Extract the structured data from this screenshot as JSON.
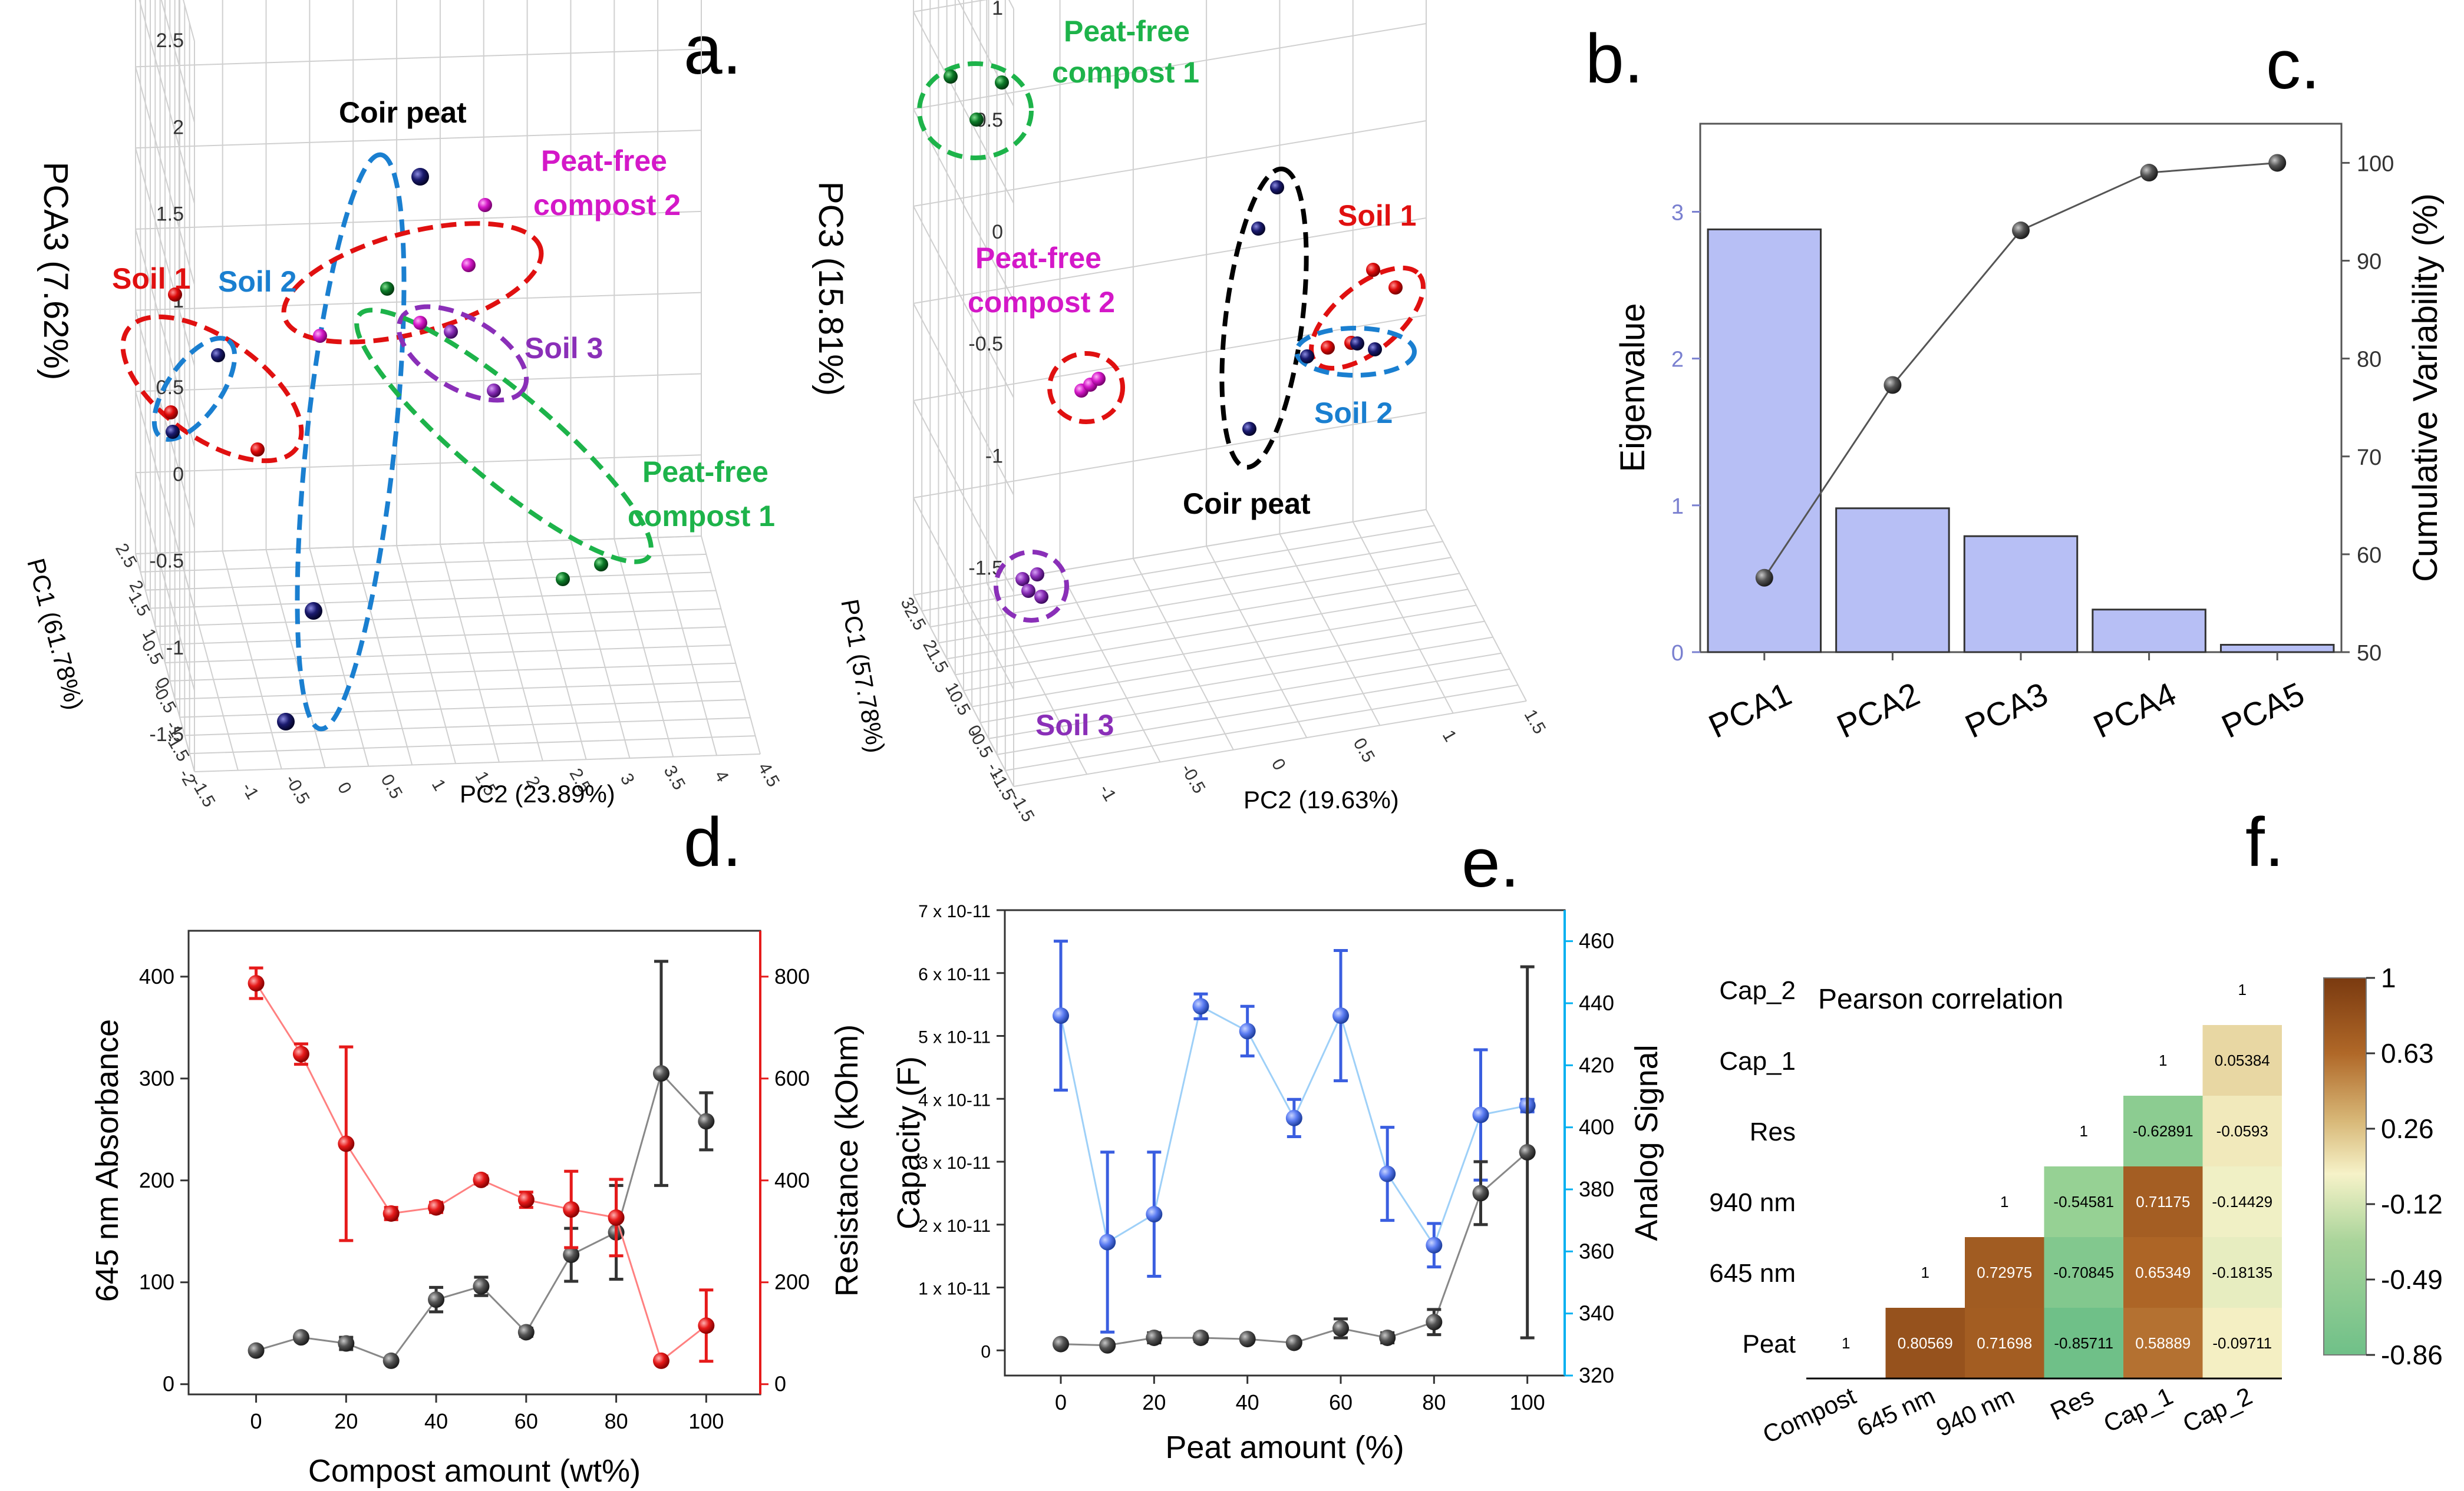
{
  "panel_letters": {
    "a": "a.",
    "b": "b.",
    "c": "c.",
    "d": "d.",
    "e": "e.",
    "f": "f."
  },
  "colors": {
    "red": "#e01010",
    "blue": "#1a7fd0",
    "black": "#000000",
    "green": "#1db34a",
    "magenta": "#d418c8",
    "purple": "#8a2fb8",
    "navy": "#1a1a6e",
    "bar": "#b7bff5",
    "cap_blue": "#5b7cf2",
    "cap_axis": "#00b0f0",
    "red_series": "#e61a1a",
    "grey_series": "#555555"
  },
  "chart_data": [
    {
      "panel": "a",
      "type": "scatter",
      "title": "",
      "xlabel": "PC2 (23.89%)",
      "ylabel": "PC1 (61.78%)",
      "zlabel": "PCA3 (7.62%)",
      "z_ticks": [
        "2.5",
        "2",
        "1.5",
        "1",
        "0.5",
        "0",
        "-0.5",
        "-1",
        "-1.5"
      ],
      "x_ticks": [
        "-1.5",
        "-1",
        "-0.5",
        "0",
        "0.5",
        "1",
        "1.5",
        "2",
        "2.5",
        "3",
        "3.5",
        "4",
        "4.5"
      ],
      "y_ticks": [
        "2.5",
        "2",
        "1.5",
        "1",
        "0.5",
        "0",
        "-0.5",
        "-1",
        "-1.5",
        "-2"
      ],
      "groups": [
        {
          "name": "Coir peat",
          "color": "#1a1a6e",
          "label_color": "#000000"
        },
        {
          "name": "Peat-free compost 2",
          "color": "#d418c8",
          "label_color": "#d418c8"
        },
        {
          "name": "Soil 1",
          "color": "#e01010",
          "label_color": "#e01010"
        },
        {
          "name": "Soil 2",
          "color": "#1a1a6e",
          "label_color": "#1a7fd0"
        },
        {
          "name": "Soil 3",
          "color": "#8a2fb8",
          "label_color": "#8a2fb8"
        },
        {
          "name": "Peat-free compost 1",
          "color": "#0c7a28",
          "label_color": "#1db34a"
        }
      ],
      "labels": {
        "coir": "Coir peat",
        "pfc2_l1": "Peat-free",
        "pfc2_l2": "compost 2",
        "soil1": "Soil 1",
        "soil2": "Soil 2",
        "soil3": "Soil 3",
        "pfc1_l1": "Peat-free",
        "pfc1_l2": "compost 1"
      }
    },
    {
      "panel": "b",
      "type": "scatter",
      "title": "",
      "xlabel": "PC2 (19.63%)",
      "ylabel": "PC1 (57.78%)",
      "zlabel": "PC3 (15.81%)",
      "z_ticks": [
        "1",
        "0.5",
        "0",
        "-0.5",
        "-1",
        "-1.5"
      ],
      "x_ticks": [
        "-1.5",
        "-1",
        "-0.5",
        "0",
        "0.5",
        "1",
        "1.5"
      ],
      "y_ticks": [
        "3",
        "2.5",
        "2",
        "1.5",
        "1",
        "0.5",
        "0",
        "-0.5",
        "-1",
        "-1.5"
      ],
      "labels": {
        "pfc1_l1": "Peat-free",
        "pfc1_l2": "compost 1",
        "pfc2_l1": "Peat-free",
        "pfc2_l2": "compost 2",
        "coir": "Coir peat",
        "soil1": "Soil 1",
        "soil2": "Soil 2",
        "soil3": "Soil 3"
      }
    },
    {
      "panel": "c",
      "type": "bar",
      "categories": [
        "PCA1",
        "PCA2",
        "PCA3",
        "PCA4",
        "PCA5"
      ],
      "series": [
        {
          "name": "Eigenvalue",
          "axis": "left",
          "values": [
            2.88,
            0.98,
            0.79,
            0.29,
            0.05
          ]
        },
        {
          "name": "Cumulative Variability (%)",
          "axis": "right",
          "type": "line",
          "values": [
            57.6,
            77.3,
            93.1,
            99.0,
            100.0
          ]
        }
      ],
      "ylabel": "Eigenvalue",
      "y2label": "Cumulative Variability (%)",
      "ylim": [
        0,
        3.6
      ],
      "y2lim": [
        50,
        104
      ],
      "y_ticks": [
        0,
        1,
        2,
        3
      ],
      "y2_ticks": [
        50,
        60,
        70,
        80,
        90,
        100
      ]
    },
    {
      "panel": "d",
      "type": "line",
      "x": [
        0,
        10,
        20,
        30,
        40,
        50,
        60,
        70,
        80,
        90,
        100
      ],
      "series": [
        {
          "name": "645 nm Absorbance",
          "axis": "left",
          "values": [
            33,
            46,
            40,
            23,
            83,
            96,
            51,
            127,
            149,
            305,
            258
          ],
          "errors": [
            3,
            3,
            6,
            2,
            12,
            9,
            4,
            26,
            46,
            110,
            28
          ]
        },
        {
          "name": "Resistance (kOhm)",
          "axis": "right",
          "values": [
            787,
            648,
            472,
            335,
            347,
            401,
            362,
            343,
            327,
            46,
            115
          ],
          "errors": [
            30,
            20,
            190,
            12,
            10,
            8,
            15,
            75,
            75,
            6,
            70
          ]
        }
      ],
      "xlabel": "Compost amount (wt%)",
      "ylabel": "645 nm Absorbance",
      "y2label": "Resistance (kOhm)",
      "xlim": [
        -15,
        112
      ],
      "ylim": [
        -10,
        445
      ],
      "y2lim": [
        -20,
        890
      ],
      "x_ticks": [
        0,
        20,
        40,
        60,
        80,
        100
      ],
      "y_ticks": [
        0,
        100,
        200,
        300,
        400
      ],
      "y2_ticks": [
        0,
        200,
        400,
        600,
        800
      ]
    },
    {
      "panel": "e",
      "type": "line",
      "x": [
        0,
        10,
        20,
        30,
        40,
        50,
        60,
        70,
        80,
        90,
        100
      ],
      "series": [
        {
          "name": "Analog Signal",
          "axis": "right",
          "values": [
            436,
            363,
            372,
            439,
            431,
            403,
            436,
            385,
            362,
            404,
            407
          ],
          "errors": [
            24,
            29,
            20,
            4,
            8,
            6,
            21,
            15,
            7,
            21,
            2
          ]
        },
        {
          "name": "Capacity (F)",
          "axis": "left",
          "values": [
            0.1,
            0.08,
            0.2,
            0.2,
            0.18,
            0.12,
            0.35,
            0.2,
            0.45,
            2.5,
            3.15
          ],
          "errors": [
            0.04,
            0.04,
            0.08,
            0.06,
            0.05,
            0.04,
            0.15,
            0.08,
            0.2,
            0.5,
            2.95
          ]
        }
      ],
      "xlabel": "Peat amount (%)",
      "ylabel": "Capacity (F)",
      "y2label": "Analog Signal",
      "xlim": [
        -12,
        108
      ],
      "ylim": [
        -0.4,
        7
      ],
      "y2lim": [
        320,
        470
      ],
      "x_ticks": [
        0,
        20,
        40,
        60,
        80,
        100
      ],
      "y_ticks": [
        "0",
        "1 x 10-11",
        "2 x 10-11",
        "3 x 10-11",
        "4 x 10-11",
        "5 x 10-11",
        "6 x 10-11",
        "7 x 10-11"
      ],
      "y2_ticks": [
        320,
        340,
        360,
        380,
        400,
        420,
        440,
        460
      ]
    },
    {
      "panel": "f",
      "type": "heatmap",
      "title": "Pearson correlation",
      "row_labels": [
        "Cap_2",
        "Cap_1",
        "Res",
        "940 nm",
        "645 nm",
        "Peat"
      ],
      "col_labels": [
        "Compost",
        "645 nm",
        "940 nm",
        "Res",
        "Cap_1",
        "Cap_2"
      ],
      "matrix": [
        [
          null,
          null,
          null,
          null,
          null,
          "1"
        ],
        [
          null,
          null,
          null,
          null,
          "1",
          "0.05384"
        ],
        [
          null,
          null,
          null,
          "1",
          "-0.62891",
          "-0.0593"
        ],
        [
          null,
          null,
          "1",
          "-0.54581",
          "0.71175",
          "-0.14429"
        ],
        [
          null,
          "1",
          "0.72975",
          "-0.70845",
          "0.65349",
          "-0.18135"
        ],
        [
          "1",
          "0.80569",
          "0.71698",
          "-0.85711",
          "0.58889",
          "-0.09711"
        ]
      ],
      "colorbar_ticks": [
        "1",
        "0.63",
        "0.26",
        "-0.12",
        "-0.49",
        "-0.86"
      ],
      "vmin": -0.86,
      "vmax": 1
    }
  ]
}
